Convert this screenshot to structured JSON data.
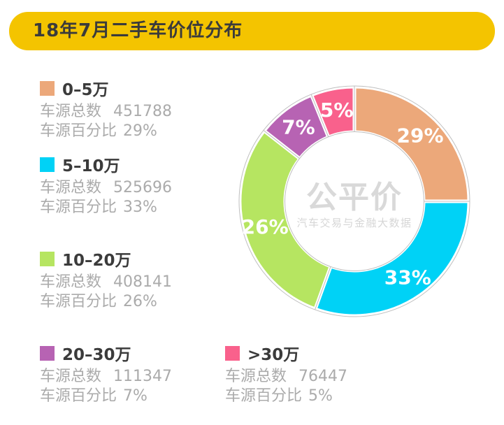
{
  "title": "18年7月二手车价位分布",
  "watermark": {
    "logo": "公平价",
    "tagline": "汽车交易与金融大数据"
  },
  "legend_labels": {
    "total": "车源总数",
    "percent": "车源百分比"
  },
  "chart_data": {
    "type": "pie",
    "donut": true,
    "title": "18年7月二手车价位分布",
    "legend_position": "left-and-bottom",
    "segments": [
      {
        "label": "0–5万",
        "count": "451788",
        "percent": "29%",
        "color": "#ECA87A",
        "start_angle": 0,
        "end_angle": 90
      },
      {
        "label": "5–10万",
        "count": "525696",
        "percent": "33%",
        "color": "#00D2F6",
        "start_angle": 90,
        "end_angle": 200
      },
      {
        "label": "10–20万",
        "count": "408141",
        "percent": "26%",
        "color": "#B6E561",
        "start_angle": 200,
        "end_angle": 308
      },
      {
        "label": "20–30万",
        "count": "111347",
        "percent": "7%",
        "color": "#B763B3",
        "start_angle": 308,
        "end_angle": 338
      },
      {
        "label": ">30万",
        "count": "76447",
        "percent": "5%",
        "color": "#F9618C",
        "start_angle": 338,
        "end_angle": 360
      }
    ],
    "style": {
      "outer_radius": 164,
      "inner_radius": 99,
      "label_radius": 133,
      "outline_color": "#BFBFBF",
      "gap_color": "#FFFFFF",
      "gap_width": 5,
      "label_color": "#FFFFFF"
    },
    "colors": {
      "header_bg": "#F4C400",
      "header_text": "#3B3B3B",
      "legend_text": "#ABABAB",
      "legend_title": "#3B3B3B",
      "watermark": "#D9D9D9"
    }
  }
}
